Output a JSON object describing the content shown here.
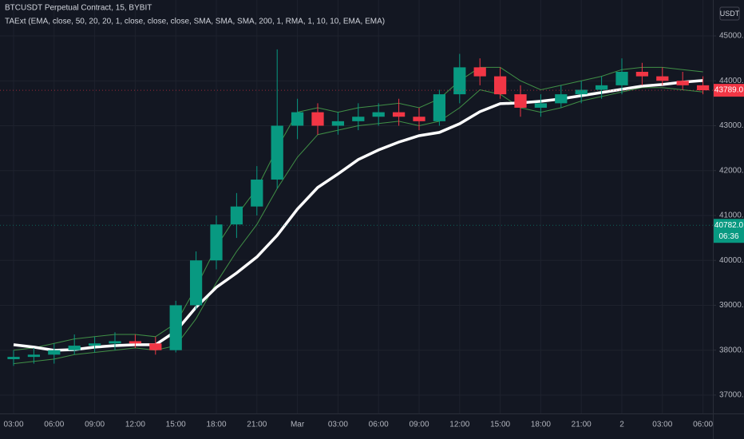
{
  "chart_data": {
    "type": "candlestick",
    "title": "BTCUSDT Perpetual Contract, 15, BYBIT",
    "subtitle": "TAExt (EMA, close, 50, 20, 20, 1, close, close, close, SMA, SMA, SMA, 200, 1, RMA, 1, 10, 10, EMA, EMA)",
    "currency": "USDT",
    "categories": [
      "03:00",
      null,
      "06:00",
      null,
      "09:00",
      null,
      "12:00",
      null,
      "15:00",
      null,
      "18:00",
      null,
      "21:00",
      null,
      "Mar",
      null,
      "03:00",
      null,
      "06:00",
      null,
      "09:00",
      null,
      "12:00",
      null,
      "15:00",
      null,
      "18:00",
      null,
      "21:00",
      null,
      "2",
      null,
      "03:00",
      null,
      "06:00"
    ],
    "open": [
      37800,
      37850,
      37900,
      38000,
      38100,
      38150,
      38200,
      38150,
      38000,
      39000,
      40000,
      40800,
      41200,
      41800,
      43000,
      43300,
      43000,
      43100,
      43200,
      43300,
      43200,
      43100,
      43700,
      44300,
      44100,
      43700,
      43400,
      43500,
      43700,
      43800,
      43900,
      44200,
      44100,
      44000,
      43900
    ],
    "high": [
      38000,
      38050,
      38150,
      38350,
      38300,
      38400,
      38350,
      38300,
      39100,
      40200,
      41000,
      41500,
      42100,
      44700,
      43600,
      43500,
      43300,
      43500,
      43500,
      43600,
      43400,
      43800,
      44600,
      44500,
      44300,
      43900,
      43700,
      43900,
      44000,
      44100,
      44500,
      44400,
      44300,
      44200,
      44100
    ],
    "low": [
      37650,
      37700,
      37700,
      37900,
      37950,
      38000,
      38050,
      37900,
      37950,
      38900,
      39800,
      40500,
      41000,
      41600,
      42700,
      42800,
      42800,
      42900,
      43000,
      43000,
      42900,
      43000,
      43500,
      43900,
      43600,
      43200,
      43200,
      43400,
      43500,
      43600,
      43700,
      43900,
      43900,
      43800,
      43700
    ],
    "close": [
      37850,
      37900,
      38000,
      38100,
      38150,
      38200,
      38150,
      38000,
      39000,
      40000,
      40800,
      41200,
      41800,
      43000,
      43300,
      43000,
      43100,
      43200,
      43300,
      43200,
      43100,
      43700,
      44300,
      44100,
      43700,
      43400,
      43500,
      43700,
      43800,
      43900,
      44200,
      44100,
      44000,
      43900,
      43789
    ],
    "up_color": "#089981",
    "down_color": "#f23645",
    "lines": [
      {
        "color": "#4caf50",
        "values": [
          38000,
          38050,
          38150,
          38250,
          38300,
          38350,
          38350,
          38300,
          38600,
          39400,
          40300,
          41000,
          41600,
          42500,
          43300,
          43400,
          43300,
          43400,
          43450,
          43500,
          43400,
          43600,
          44000,
          44300,
          44300,
          44000,
          43800,
          43900,
          44000,
          44100,
          44250,
          44300,
          44300,
          44250,
          44200
        ]
      },
      {
        "color": "#4caf50",
        "values": [
          37700,
          37750,
          37800,
          37900,
          37950,
          38000,
          38050,
          38000,
          38100,
          38700,
          39500,
          40200,
          40800,
          41600,
          42300,
          42800,
          42900,
          43000,
          43050,
          43100,
          43000,
          43100,
          43400,
          43800,
          43700,
          43400,
          43300,
          43400,
          43550,
          43650,
          43750,
          43850,
          43850,
          43800,
          43750
        ]
      },
      {
        "color": "#ffffff",
        "values": [
          38120,
          38067,
          37996,
          38013,
          38067,
          38102,
          38120,
          38120,
          38422,
          38956,
          39400,
          39720,
          40076,
          40556,
          41143,
          41623,
          41925,
          42245,
          42459,
          42636,
          42778,
          42850,
          43045,
          43312,
          43490,
          43508,
          43543,
          43597,
          43668,
          43739,
          43810,
          43881,
          43917,
          43970,
          44006
        ]
      }
    ],
    "markers": [
      {
        "value": 43789,
        "label": "43789.0",
        "color": "#f23645"
      },
      {
        "value": 40782,
        "label": "40782.0",
        "sublabel": "06:36",
        "color": "#089981"
      }
    ],
    "ylim": [
      36590,
      45800
    ],
    "yticks": [
      {
        "value": 37000,
        "label": "37000.0"
      },
      {
        "value": 38000,
        "label": "38000.0"
      },
      {
        "value": 39000,
        "label": "39000.0"
      },
      {
        "value": 40000,
        "label": "40000.0"
      },
      {
        "value": 41000,
        "label": "41000.0"
      },
      {
        "value": 42000,
        "label": "42000.0"
      },
      {
        "value": 43000,
        "label": "43000.0"
      },
      {
        "value": 44000,
        "label": "44000.0"
      },
      {
        "value": 45000,
        "label": "45000.0"
      }
    ],
    "grid": true
  }
}
